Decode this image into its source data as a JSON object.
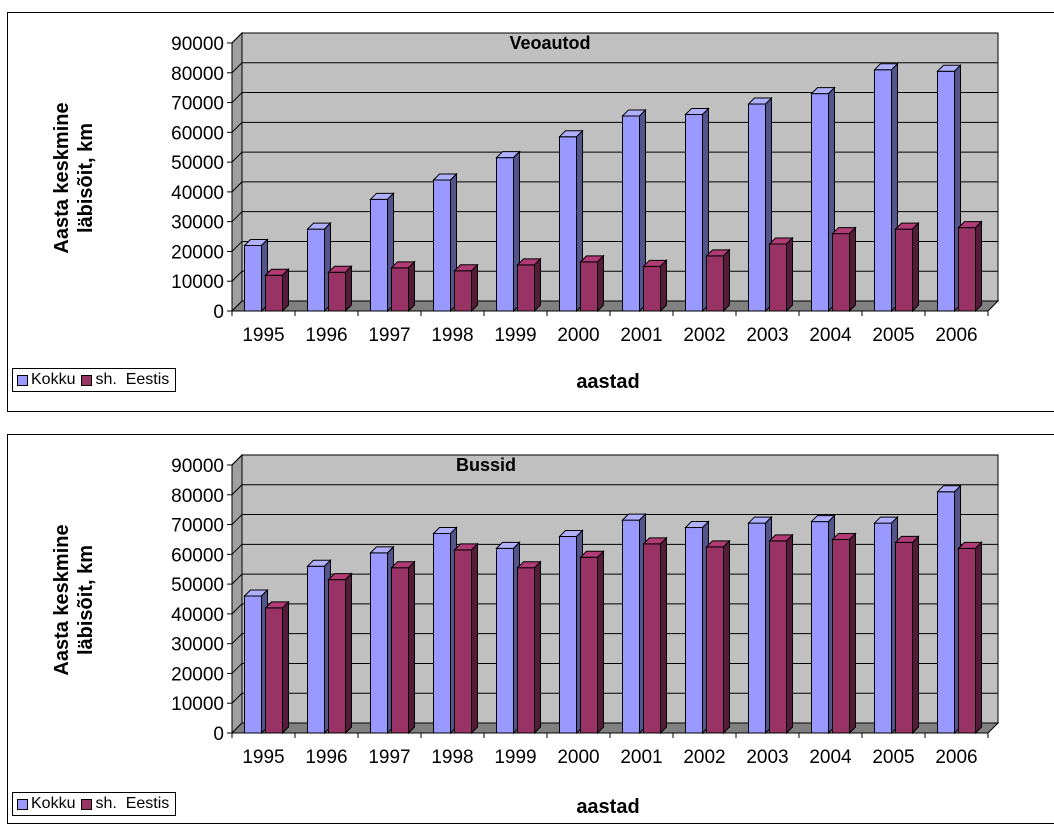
{
  "colors": {
    "kokku": "#9999ff",
    "eestis": "#993366",
    "plot_bg": "#c0c0c0"
  },
  "chart_data": [
    {
      "type": "bar",
      "title": "Veoautod",
      "xlabel": "aastad",
      "ylabel": "Aasta keskmine läbisõit, km",
      "ylim": [
        0,
        90000
      ],
      "yticks": [
        "0",
        "10000",
        "20000",
        "30000",
        "40000",
        "50000",
        "60000",
        "70000",
        "80000",
        "90000"
      ],
      "categories": [
        "1995",
        "1996",
        "1997",
        "1998",
        "1999",
        "2000",
        "2001",
        "2002",
        "2003",
        "2004",
        "2005",
        "2006"
      ],
      "legend_position": "bottom-left",
      "grid": true,
      "series": [
        {
          "name": "Kokku",
          "values": [
            22000,
            27500,
            37500,
            44000,
            51500,
            58500,
            65500,
            66000,
            69500,
            73000,
            81000,
            80500
          ]
        },
        {
          "name": "sh.  Eestis",
          "values": [
            12000,
            13000,
            14500,
            13500,
            15500,
            16500,
            15000,
            18500,
            22500,
            26000,
            27500,
            28000
          ]
        }
      ]
    },
    {
      "type": "bar",
      "title": "Bussid",
      "xlabel": "aastad",
      "ylabel": "Aasta keskmine läbisõit, km",
      "ylim": [
        0,
        90000
      ],
      "yticks": [
        "0",
        "10000",
        "20000",
        "30000",
        "40000",
        "50000",
        "60000",
        "70000",
        "80000",
        "90000"
      ],
      "categories": [
        "1995",
        "1996",
        "1997",
        "1998",
        "1999",
        "2000",
        "2001",
        "2002",
        "2003",
        "2004",
        "2005",
        "2006"
      ],
      "legend_position": "bottom-left",
      "grid": true,
      "series": [
        {
          "name": "Kokku",
          "values": [
            46000,
            56000,
            60500,
            67000,
            62000,
            66000,
            71500,
            69000,
            70500,
            71000,
            70500,
            81000
          ]
        },
        {
          "name": "sh.  Eestis",
          "values": [
            42000,
            51500,
            55500,
            61500,
            55500,
            59000,
            63500,
            62500,
            64500,
            65000,
            64000,
            62000
          ]
        }
      ]
    }
  ]
}
